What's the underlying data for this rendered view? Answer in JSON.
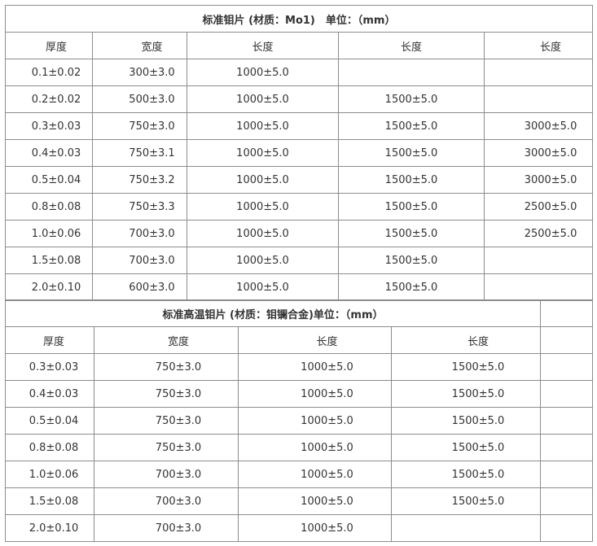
{
  "table1": {
    "title": "标准钼片 (材质：Mo1)　单位：（mm）",
    "headers": [
      "厚度",
      "宽度",
      "长度",
      "长度",
      "长度"
    ],
    "rows": [
      [
        "0.1±0.02",
        "300±3.0",
        "1000±5.0",
        "",
        ""
      ],
      [
        "0.2±0.02",
        "500±3.0",
        "1000±5.0",
        "1500±5.0",
        ""
      ],
      [
        "0.3±0.03",
        "750±3.0",
        "1000±5.0",
        "1500±5.0",
        "3000±5.0"
      ],
      [
        "0.4±0.03",
        "750±3.1",
        "1000±5.0",
        "1500±5.0",
        "3000±5.0"
      ],
      [
        "0.5±0.04",
        "750±3.2",
        "1000±5.0",
        "1500±5.0",
        "3000±5.0"
      ],
      [
        "0.8±0.08",
        "750±3.3",
        "1000±5.0",
        "1500±5.0",
        "2500±5.0"
      ],
      [
        "1.0±0.06",
        "700±3.0",
        "1000±5.0",
        "1500±5.0",
        "2500±5.0"
      ],
      [
        "1.5±0.08",
        "700±3.0",
        "1000±5.0",
        "1500±5.0",
        ""
      ],
      [
        "2.0±0.10",
        "600±3.0",
        "1000±5.0",
        "1500±5.0",
        ""
      ]
    ]
  },
  "table2": {
    "title": "标准高温钼片 (材质：钼镧合金)单位：（mm）",
    "headers": [
      "厚度",
      "宽度",
      "长度",
      "长度"
    ],
    "rows": [
      [
        "0.3±0.03",
        "750±3.0",
        "1000±5.0",
        "1500±5.0"
      ],
      [
        "0.4±0.03",
        "750±3.0",
        "1000±5.0",
        "1500±5.0"
      ],
      [
        "0.5±0.04",
        "750±3.0",
        "1000±5.0",
        "1500±5.0"
      ],
      [
        "0.8±0.08",
        "750±3.0",
        "1000±5.0",
        "1500±5.0"
      ],
      [
        "1.0±0.06",
        "700±3.0",
        "1000±5.0",
        "1500±5.0"
      ],
      [
        "1.5±0.08",
        "700±3.0",
        "1000±5.0",
        "1500±5.0"
      ],
      [
        "2.0±0.10",
        "700±3.0",
        "1000±5.0",
        ""
      ]
    ]
  }
}
